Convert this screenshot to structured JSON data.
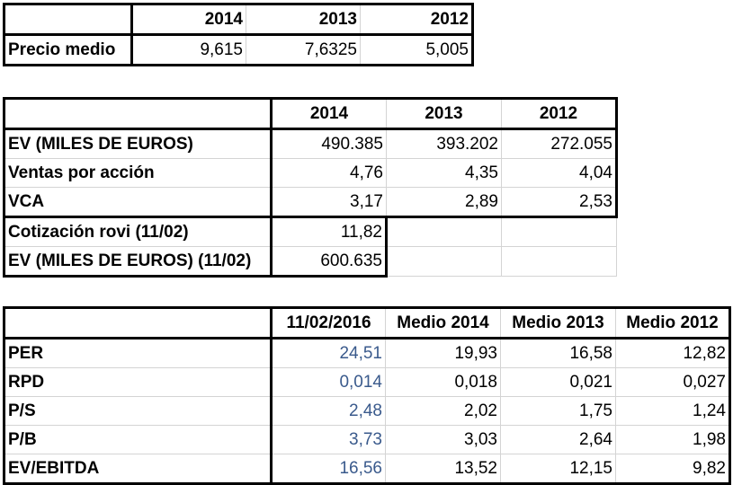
{
  "table1": {
    "years": [
      "2014",
      "2013",
      "2012"
    ],
    "rows": [
      {
        "label": "Precio medio",
        "values": [
          "9,615",
          "7,6325",
          "5,005"
        ]
      }
    ]
  },
  "table2": {
    "years": [
      "2014",
      "2013",
      "2012"
    ],
    "rows": [
      {
        "label": "EV (MILES DE EUROS)",
        "values": [
          "490.385",
          "393.202",
          "272.055"
        ]
      },
      {
        "label": "Ventas por acción",
        "values": [
          "4,76",
          "4,35",
          "4,04"
        ]
      },
      {
        "label": "VCA",
        "values": [
          "3,17",
          "2,89",
          "2,53"
        ]
      }
    ],
    "extra_rows": [
      {
        "label": "Cotización rovi (11/02)",
        "value": "11,82"
      },
      {
        "label": "EV (MILES DE EUROS) (11/02)",
        "value": "600.635"
      }
    ]
  },
  "table3": {
    "headers": [
      "11/02/2016",
      "Medio 2014",
      "Medio 2013",
      "Medio 2012"
    ],
    "rows": [
      {
        "label": "PER",
        "values": [
          "24,51",
          "19,93",
          "16,58",
          "12,82"
        ]
      },
      {
        "label": "RPD",
        "values": [
          "0,014",
          "0,018",
          "0,021",
          "0,027"
        ]
      },
      {
        "label": "P/S",
        "values": [
          "2,48",
          "2,02",
          "1,75",
          "1,24"
        ]
      },
      {
        "label": "P/B",
        "values": [
          "3,73",
          "3,03",
          "2,64",
          "1,98"
        ]
      },
      {
        "label": "EV/EBITDA",
        "values": [
          "16,56",
          "13,52",
          "12,15",
          "9,82"
        ]
      }
    ],
    "highlight_color": "#3a5a8c"
  }
}
